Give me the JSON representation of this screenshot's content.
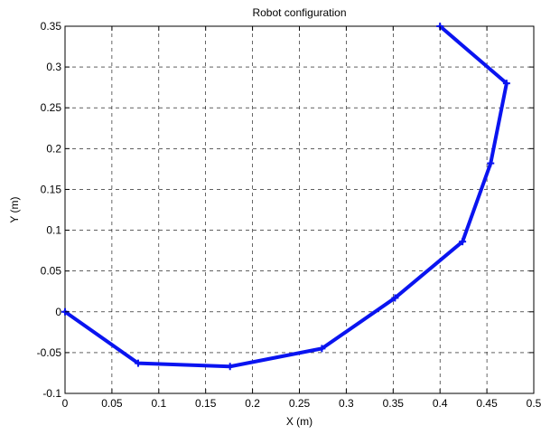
{
  "chart_data": {
    "type": "line",
    "title": "Robot configuration",
    "xlabel": "X (m)",
    "ylabel": "Y (m)",
    "xlim": [
      0,
      0.5
    ],
    "ylim": [
      -0.1,
      0.35
    ],
    "x_ticks": [
      "0",
      "0.05",
      "0.1",
      "0.15",
      "0.2",
      "0.25",
      "0.3",
      "0.35",
      "0.4",
      "0.45",
      "0.5"
    ],
    "y_ticks": [
      "-0.1",
      "-0.05",
      "0",
      "0.05",
      "0.1",
      "0.15",
      "0.2",
      "0.25",
      "0.3",
      "0.35"
    ],
    "grid": true,
    "grid_style": "dashed",
    "series": [
      {
        "color": "#0a14f0",
        "marker": "plus",
        "points": [
          [
            0,
            0
          ],
          [
            0.078,
            -0.063
          ],
          [
            0.176,
            -0.067
          ],
          [
            0.274,
            -0.045
          ],
          [
            0.352,
            0.017
          ],
          [
            0.424,
            0.086
          ],
          [
            0.454,
            0.182
          ],
          [
            0.471,
            0.28
          ],
          [
            0.4,
            0.35
          ]
        ]
      }
    ]
  }
}
